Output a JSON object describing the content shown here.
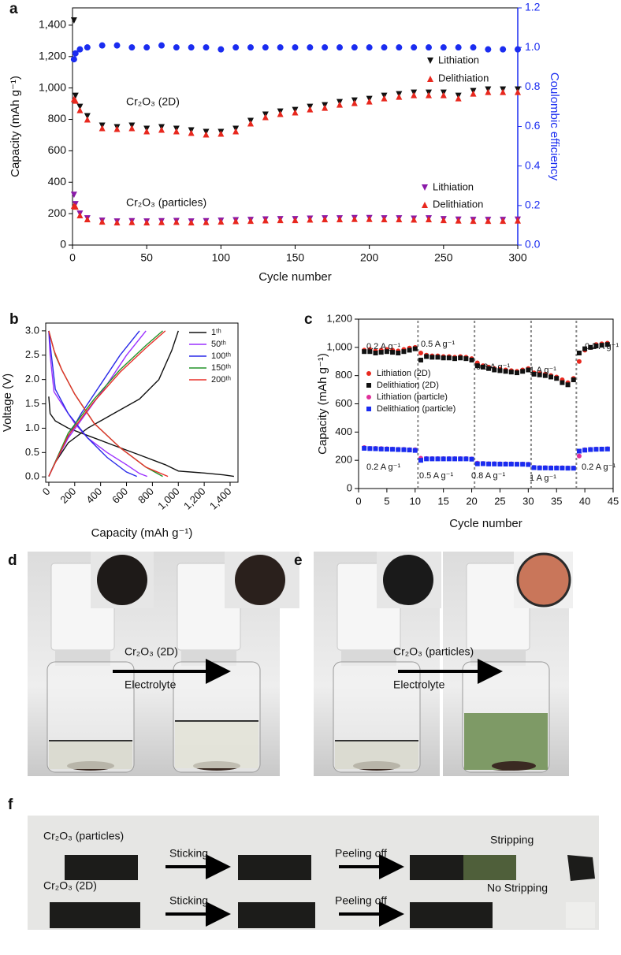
{
  "chart_data": [
    {
      "type": "scatter",
      "label": "a",
      "xlabel": "Cycle number",
      "ylabel": "Capacity (mAh g⁻¹)",
      "y2label": "Coulombic efficiency",
      "xlim": [
        0,
        300
      ],
      "xticks": [
        0,
        50,
        100,
        150,
        200,
        250,
        300
      ],
      "ylim": [
        0,
        1510
      ],
      "yticks": [
        0,
        200,
        400,
        600,
        800,
        {
          "value": 1000,
          "label": "1,000"
        },
        {
          "value": 1200,
          "label": "1,200"
        },
        {
          "value": 1400,
          "label": "1,400"
        }
      ],
      "y2lim": [
        0,
        1.2
      ],
      "y2ticks": [
        {
          "value": 0,
          "label": "0.0"
        },
        0.2,
        0.4,
        0.6,
        0.8,
        {
          "value": 1,
          "label": "1.0"
        },
        1.2
      ],
      "y2color": "#1a2cf0",
      "annotations": [
        "Cr₂O₃ (2D)",
        "Cr₂O₃ (particles)"
      ],
      "x": [
        1,
        2,
        5,
        10,
        20,
        30,
        40,
        50,
        60,
        70,
        80,
        90,
        100,
        110,
        120,
        130,
        140,
        150,
        160,
        170,
        180,
        190,
        200,
        210,
        220,
        230,
        240,
        250,
        260,
        270,
        280,
        290,
        300
      ],
      "series": [
        {
          "name": "Lithiation",
          "color": "#111111",
          "marker": "tri-down",
          "values": [
            1430,
            950,
            880,
            820,
            760,
            750,
            760,
            740,
            750,
            740,
            730,
            720,
            720,
            740,
            790,
            830,
            850,
            860,
            880,
            890,
            910,
            920,
            930,
            950,
            960,
            970,
            970,
            970,
            950,
            980,
            990,
            990,
            990
          ]
        },
        {
          "name": "Delithiation",
          "color": "#e8281e",
          "marker": "tri-up",
          "values": [
            930,
            920,
            860,
            800,
            745,
            740,
            745,
            725,
            735,
            725,
            715,
            705,
            710,
            725,
            775,
            815,
            835,
            845,
            865,
            875,
            895,
            905,
            915,
            935,
            945,
            955,
            955,
            955,
            935,
            965,
            975,
            975,
            975
          ]
        },
        {
          "name": "Lithiation",
          "color": "#8a1aa8",
          "marker": "tri-down",
          "values": [
            320,
            260,
            200,
            170,
            155,
            150,
            152,
            150,
            152,
            153,
            150,
            152,
            155,
            158,
            160,
            163,
            165,
            165,
            168,
            170,
            170,
            172,
            172,
            170,
            170,
            168,
            170,
            165,
            162,
            160,
            160,
            160,
            162
          ]
        },
        {
          "name": "Delithiation",
          "color": "#e8281e",
          "marker": "tri-up",
          "values": [
            250,
            245,
            190,
            165,
            150,
            145,
            147,
            145,
            147,
            148,
            145,
            147,
            150,
            153,
            155,
            158,
            160,
            160,
            163,
            165,
            165,
            167,
            167,
            165,
            165,
            163,
            165,
            160,
            157,
            155,
            155,
            155,
            157
          ]
        },
        {
          "color": "#1a2cf0",
          "marker": "circle",
          "axis": "y2",
          "values": [
            0.94,
            0.97,
            0.99,
            1.0,
            1.01,
            1.01,
            1.0,
            1.0,
            1.01,
            1.0,
            1.0,
            1.0,
            0.99,
            1.0,
            1.0,
            1.0,
            1.0,
            1.0,
            1.0,
            1.0,
            1.0,
            1.0,
            1.0,
            1.0,
            1.0,
            1.0,
            1.0,
            1.0,
            1.0,
            1.0,
            0.99,
            0.99,
            0.99
          ]
        }
      ]
    },
    {
      "type": "line",
      "label": "b",
      "xlabel": "Capacity (mAh g⁻¹)",
      "ylabel": "Voltage (V)",
      "xlim": [
        -24,
        1461
      ],
      "xticks": [
        0,
        200,
        400,
        600,
        800,
        {
          "value": 1000,
          "label": "1,000"
        },
        {
          "value": 1200,
          "label": "1,200"
        },
        {
          "value": 1400,
          "label": "1,400"
        }
      ],
      "ylim": [
        -0.11,
        3.16
      ],
      "yticks": [
        {
          "value": 0,
          "label": "0.0"
        },
        0.5,
        {
          "value": 1,
          "label": "1.0"
        },
        1.5,
        {
          "value": 2,
          "label": "2.0"
        },
        2.5,
        {
          "value": 3,
          "label": "3.0"
        }
      ],
      "series": [
        {
          "name": "1ᵗʰ",
          "color": "#111111",
          "x": [
            0,
            10,
            50,
            150,
            300,
            500,
            700,
            900,
            1000,
            1200,
            1350,
            1430,
            null,
            0,
            50,
            150,
            300,
            500,
            700,
            850,
            950,
            1000
          ],
          "values": [
            1.65,
            1.3,
            1.15,
            1.0,
            0.85,
            0.65,
            0.45,
            0.25,
            0.12,
            0.08,
            0.04,
            0.01,
            null,
            0.01,
            0.3,
            0.7,
            1.0,
            1.3,
            1.6,
            2.0,
            2.6,
            3.0
          ]
        },
        {
          "name": "50ᵗʰ",
          "color": "#9b30ff",
          "x": [
            0,
            10,
            30,
            40,
            100,
            200,
            300,
            450,
            600,
            700,
            760,
            null,
            0,
            50,
            150,
            300,
            450,
            600,
            750
          ],
          "values": [
            3.0,
            2.5,
            2.0,
            1.75,
            1.5,
            1.1,
            0.8,
            0.5,
            0.25,
            0.07,
            0.01,
            null,
            0.01,
            0.3,
            0.8,
            1.35,
            1.9,
            2.5,
            3.0
          ]
        },
        {
          "name": "100ᵗʰ",
          "color": "#2a2ae8",
          "x": [
            0,
            20,
            50,
            150,
            300,
            450,
            600,
            680,
            null,
            0,
            100,
            250,
            400,
            550,
            700
          ],
          "values": [
            3.0,
            2.5,
            1.8,
            1.3,
            0.8,
            0.4,
            0.1,
            0.01,
            null,
            0.01,
            0.6,
            1.3,
            1.9,
            2.5,
            3.0
          ]
        },
        {
          "name": "150ᵗʰ",
          "color": "#23932a",
          "x": [
            0,
            50,
            100,
            200,
            350,
            550,
            750,
            880,
            null,
            0,
            150,
            350,
            550,
            750,
            880
          ],
          "values": [
            3.0,
            2.5,
            2.2,
            1.7,
            1.1,
            0.6,
            0.2,
            0.01,
            null,
            0.01,
            0.9,
            1.6,
            2.2,
            2.7,
            3.0
          ]
        },
        {
          "name": "200ᵗʰ",
          "color": "#e8302a",
          "x": [
            0,
            40,
            100,
            200,
            350,
            550,
            750,
            920,
            null,
            0,
            150,
            350,
            550,
            750,
            900
          ],
          "values": [
            3.0,
            2.6,
            2.2,
            1.7,
            1.1,
            0.6,
            0.2,
            0.01,
            null,
            0.01,
            0.85,
            1.55,
            2.15,
            2.65,
            3.0
          ]
        }
      ]
    },
    {
      "type": "scatter",
      "label": "c",
      "xlabel": "Cycle number",
      "ylabel": "Capacity (mAh g⁻¹)",
      "xlim": [
        0,
        45
      ],
      "xticks": [
        0,
        5,
        10,
        15,
        20,
        25,
        30,
        35,
        40,
        45
      ],
      "ylim": [
        0,
        1200
      ],
      "yticks": [
        0,
        200,
        400,
        600,
        800,
        {
          "value": 1000,
          "label": "1,000"
        },
        {
          "value": 1200,
          "label": "1,200"
        }
      ],
      "boundaries": [
        10.5,
        20.5,
        30.5,
        38.5
      ],
      "annotations": [
        "0.2 A g⁻¹",
        "0.5 A g⁻¹",
        "0.8 A g⁻¹",
        "1 A g⁻¹",
        "0.2 A g⁻¹",
        "0.2 A g⁻¹",
        "0.5 A g⁻¹",
        "0.8 A g⁻¹",
        "1 A g⁻¹",
        "0.2 A g⁻¹"
      ],
      "x": [
        1,
        2,
        3,
        4,
        5,
        6,
        7,
        8,
        9,
        10,
        11,
        12,
        13,
        14,
        15,
        16,
        17,
        18,
        19,
        20,
        21,
        22,
        23,
        24,
        25,
        26,
        27,
        28,
        29,
        30,
        31,
        32,
        33,
        34,
        35,
        36,
        37,
        38,
        39,
        40,
        41,
        42,
        43,
        44
      ],
      "series": [
        {
          "name": "Lithiation (2D)",
          "color": "#e8281e",
          "marker": "circle",
          "values": [
            980,
            985,
            975,
            980,
            985,
            980,
            975,
            985,
            995,
            1000,
            960,
            945,
            940,
            940,
            935,
            935,
            930,
            935,
            930,
            920,
            890,
            870,
            860,
            850,
            845,
            840,
            835,
            830,
            840,
            850,
            820,
            815,
            810,
            800,
            790,
            770,
            750,
            780,
            900,
            980,
            1000,
            1020,
            1025,
            1030
          ]
        },
        {
          "name": "Delithiation (2D)",
          "color": "#111111",
          "marker": "square",
          "values": [
            970,
            970,
            960,
            965,
            970,
            965,
            960,
            970,
            980,
            990,
            910,
            935,
            930,
            930,
            925,
            925,
            920,
            925,
            920,
            910,
            870,
            860,
            850,
            840,
            835,
            830,
            825,
            820,
            830,
            840,
            810,
            805,
            800,
            790,
            780,
            750,
            735,
            770,
            960,
            990,
            1000,
            1010,
            1015,
            1020
          ]
        },
        {
          "name": "Lithiation (particle)",
          "color": "#e0309a",
          "marker": "circle",
          "values": [
            290,
            285,
            285,
            283,
            282,
            280,
            278,
            278,
            275,
            275,
            215,
            213,
            212,
            212,
            212,
            212,
            212,
            212,
            212,
            210,
            180,
            178,
            176,
            176,
            175,
            175,
            175,
            174,
            174,
            172,
            150,
            148,
            148,
            147,
            147,
            147,
            146,
            146,
            230,
            275,
            278,
            280,
            280,
            282
          ]
        },
        {
          "name": "Delithiation (particle)",
          "color": "#1a2cf0",
          "marker": "square",
          "values": [
            285,
            283,
            282,
            280,
            279,
            278,
            276,
            275,
            273,
            270,
            200,
            210,
            210,
            210,
            210,
            210,
            210,
            210,
            210,
            208,
            175,
            176,
            174,
            174,
            173,
            173,
            173,
            172,
            172,
            170,
            148,
            146,
            146,
            145,
            145,
            145,
            144,
            144,
            265,
            272,
            276,
            278,
            279,
            280
          ]
        }
      ]
    }
  ],
  "photos": {
    "d": {
      "label": "d",
      "material": "Cr₂O₃ (2D)",
      "medium": "Electrolyte"
    },
    "e": {
      "label": "e",
      "material": "Cr₂O₃ (particles)",
      "medium": "Electrolyte"
    },
    "f": {
      "label": "f",
      "rows": [
        {
          "material": "Cr₂O₃ (particles)",
          "step1": "Sticking",
          "step2": "Peeling off",
          "result": "Stripping"
        },
        {
          "material": "Cr₂O₃ (2D)",
          "step1": "Sticking",
          "step2": "Peeling off",
          "result": "No Stripping"
        }
      ]
    }
  }
}
